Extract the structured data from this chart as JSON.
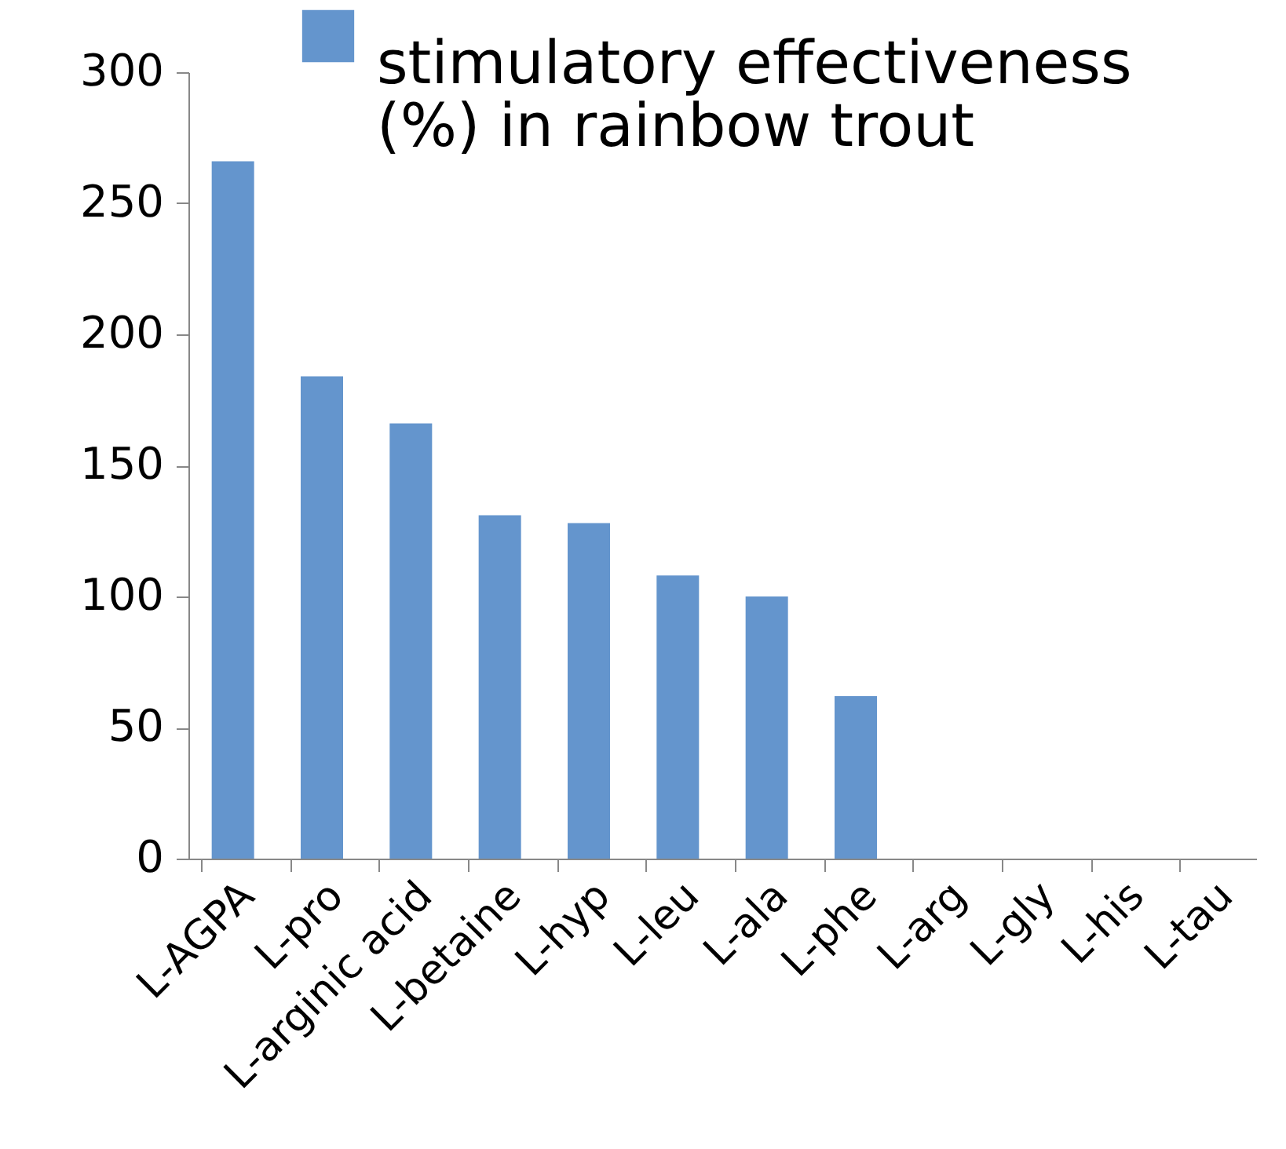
{
  "chart_data": {
    "type": "bar",
    "categories": [
      "L-AGPA",
      "L-pro",
      "L-arginic acid",
      "L-betaine",
      "L-hyp",
      "L-leu",
      "L-ala",
      "L-phe",
      "L-arg",
      "L-gly",
      "L-his",
      "L-tau"
    ],
    "series": [
      {
        "name": "stimulatory effectiveness (%) in rainbow trout",
        "color": "#6495cd",
        "values": [
          266,
          184,
          166,
          131,
          128,
          108,
          100,
          62,
          0,
          0,
          0,
          0
        ]
      }
    ],
    "ylim": [
      0,
      300
    ],
    "yticks": [
      0,
      50,
      100,
      150,
      200,
      250,
      300
    ],
    "grid": false,
    "legend": "top right"
  }
}
